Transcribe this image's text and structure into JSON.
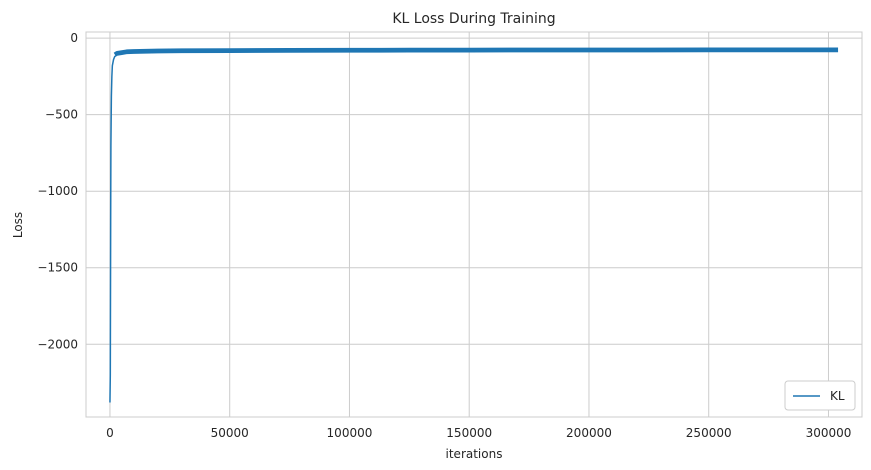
{
  "chart_data": {
    "type": "line",
    "title": "KL Loss During Training",
    "xlabel": "iterations",
    "ylabel": "Loss",
    "xlim": [
      -10000,
      314000
    ],
    "ylim": [
      -2475,
      40
    ],
    "xticks": [
      0,
      50000,
      100000,
      150000,
      200000,
      250000,
      300000
    ],
    "xtick_labels": [
      "0",
      "50000",
      "100000",
      "150000",
      "200000",
      "250000",
      "300000"
    ],
    "yticks": [
      0,
      -500,
      -1000,
      -1500,
      -2000
    ],
    "ytick_labels": [
      "0",
      "−500",
      "−1000",
      "−1500",
      "−2000"
    ],
    "grid": true,
    "legend": {
      "placement": "bottom-right",
      "entries": [
        "KL"
      ]
    },
    "series": [
      {
        "name": "KL",
        "color": "#1f77b4",
        "x": [
          0,
          150,
          300,
          400,
          600,
          800,
          1000,
          1500,
          2000,
          3000,
          5000,
          7000,
          10000,
          20000,
          30000,
          50000,
          75000,
          100000,
          125000,
          150000,
          175000,
          200000,
          225000,
          250000,
          275000,
          300000,
          304000
        ],
        "y": [
          -2380,
          -2200,
          -1200,
          -700,
          -380,
          -250,
          -180,
          -140,
          -120,
          -110,
          -105,
          -100,
          -98,
          -95,
          -93,
          -92,
          -91,
          -90,
          -89,
          -89,
          -88,
          -88,
          -88,
          -87,
          -87,
          -87,
          -87
        ]
      }
    ]
  }
}
